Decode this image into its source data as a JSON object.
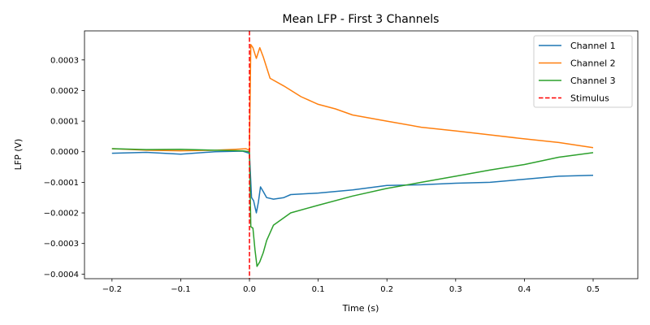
{
  "chart_data": {
    "type": "line",
    "title": "Mean LFP - First 3 Channels",
    "xlabel": "Time (s)",
    "ylabel": "LFP (V)",
    "xlim": [
      -0.24,
      0.565
    ],
    "ylim": [
      -0.000415,
      0.000395
    ],
    "grid": false,
    "legend_position": "top-right",
    "x_ticks": [
      -0.2,
      -0.1,
      0.0,
      0.1,
      0.2,
      0.3,
      0.4,
      0.5
    ],
    "x_tick_labels": [
      "−0.2",
      "−0.1",
      "0.0",
      "0.1",
      "0.2",
      "0.3",
      "0.4",
      "0.5"
    ],
    "y_ticks": [
      -0.0004,
      -0.0003,
      -0.0002,
      -0.0001,
      0.0,
      0.0001,
      0.0002,
      0.0003
    ],
    "y_tick_labels": [
      "−0.0004",
      "−0.0003",
      "−0.0002",
      "−0.0001",
      "0.0000",
      "0.0001",
      "0.0002",
      "0.0003"
    ],
    "series": [
      {
        "name": "Channel 1",
        "color": "#1f77b4",
        "points": [
          [
            -0.2,
            -5e-06
          ],
          [
            -0.15,
            -2e-06
          ],
          [
            -0.1,
            -8e-06
          ],
          [
            -0.05,
            0.0
          ],
          [
            -0.01,
            2e-06
          ],
          [
            0.0,
            -5e-06
          ],
          [
            0.003,
            -0.00015
          ],
          [
            0.006,
            -0.00016
          ],
          [
            0.01,
            -0.0002
          ],
          [
            0.013,
            -0.000165
          ],
          [
            0.016,
            -0.000115
          ],
          [
            0.02,
            -0.00013
          ],
          [
            0.025,
            -0.00015
          ],
          [
            0.035,
            -0.000155
          ],
          [
            0.05,
            -0.00015
          ],
          [
            0.06,
            -0.00014
          ],
          [
            0.1,
            -0.000135
          ],
          [
            0.15,
            -0.000125
          ],
          [
            0.2,
            -0.00011
          ],
          [
            0.25,
            -0.000108
          ],
          [
            0.3,
            -0.000103
          ],
          [
            0.35,
            -0.0001
          ],
          [
            0.4,
            -9e-05
          ],
          [
            0.45,
            -8e-05
          ],
          [
            0.5,
            -7.7e-05
          ]
        ]
      },
      {
        "name": "Channel 2",
        "color": "#ff7f0e",
        "points": [
          [
            -0.2,
            1e-05
          ],
          [
            -0.15,
            5e-06
          ],
          [
            -0.1,
            3e-06
          ],
          [
            -0.05,
            5e-06
          ],
          [
            -0.02,
            8e-06
          ],
          [
            -0.005,
            1e-05
          ],
          [
            0.0,
            5e-06
          ],
          [
            0.002,
            0.00035
          ],
          [
            0.005,
            0.00034
          ],
          [
            0.01,
            0.000305
          ],
          [
            0.015,
            0.00034
          ],
          [
            0.02,
            0.00031
          ],
          [
            0.03,
            0.00024
          ],
          [
            0.05,
            0.000215
          ],
          [
            0.075,
            0.00018
          ],
          [
            0.1,
            0.000155
          ],
          [
            0.125,
            0.00014
          ],
          [
            0.15,
            0.00012
          ],
          [
            0.2,
            0.0001
          ],
          [
            0.25,
            8e-05
          ],
          [
            0.3,
            6.8e-05
          ],
          [
            0.35,
            5.5e-05
          ],
          [
            0.4,
            4.2e-05
          ],
          [
            0.45,
            3e-05
          ],
          [
            0.5,
            1.3e-05
          ]
        ]
      },
      {
        "name": "Channel 3",
        "color": "#2ca02c",
        "points": [
          [
            -0.2,
            1e-05
          ],
          [
            -0.15,
            7e-06
          ],
          [
            -0.1,
            8e-06
          ],
          [
            -0.05,
            5e-06
          ],
          [
            -0.01,
            3e-06
          ],
          [
            0.0,
            0.0
          ],
          [
            0.002,
            -0.000245
          ],
          [
            0.005,
            -0.00025
          ],
          [
            0.008,
            -0.00032
          ],
          [
            0.011,
            -0.000375
          ],
          [
            0.015,
            -0.00036
          ],
          [
            0.02,
            -0.00033
          ],
          [
            0.025,
            -0.00029
          ],
          [
            0.035,
            -0.00024
          ],
          [
            0.06,
            -0.0002
          ],
          [
            0.1,
            -0.000175
          ],
          [
            0.15,
            -0.000145
          ],
          [
            0.2,
            -0.00012
          ],
          [
            0.25,
            -0.0001
          ],
          [
            0.3,
            -8e-05
          ],
          [
            0.35,
            -6e-05
          ],
          [
            0.4,
            -4.2e-05
          ],
          [
            0.45,
            -1.8e-05
          ],
          [
            0.5,
            -3e-06
          ]
        ]
      }
    ],
    "stimulus": {
      "name": "Stimulus",
      "x": 0.0,
      "color": "#ff0000"
    }
  }
}
